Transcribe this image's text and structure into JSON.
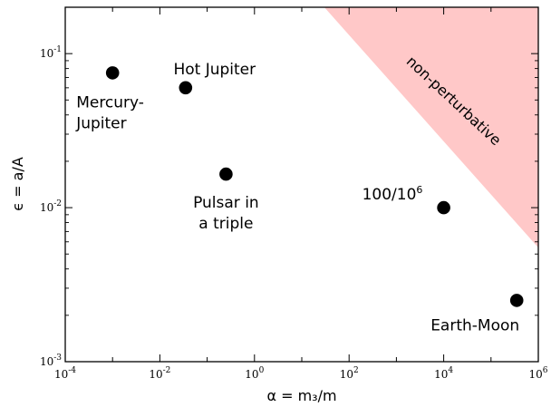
{
  "chart_data": {
    "type": "scatter",
    "xscale": "log",
    "yscale": "log",
    "xlim": [
      0.0001,
      1000000
    ],
    "ylim": [
      0.001,
      0.2
    ],
    "xlabel": "α = m₃/m",
    "ylabel": "ϵ = a/A",
    "x_ticks": [
      {
        "base": "10",
        "exp": "-4",
        "value": 0.0001
      },
      {
        "base": "10",
        "exp": "-2",
        "value": 0.01
      },
      {
        "base": "10",
        "exp": "0",
        "value": 1
      },
      {
        "base": "10",
        "exp": "2",
        "value": 100
      },
      {
        "base": "10",
        "exp": "4",
        "value": 10000
      },
      {
        "base": "10",
        "exp": "6",
        "value": 1000000
      }
    ],
    "y_ticks": [
      {
        "base": "10",
        "exp": "-3",
        "value": 0.001
      },
      {
        "base": "10",
        "exp": "-2",
        "value": 0.01
      },
      {
        "base": "10",
        "exp": "-1",
        "value": 0.1
      }
    ],
    "points": [
      {
        "x": 0.001,
        "y": 0.075,
        "lines": [
          "Mercury-",
          "Jupiter"
        ]
      },
      {
        "x": 0.035,
        "y": 0.06,
        "lines": [
          "Hot Jupiter"
        ]
      },
      {
        "x": 0.25,
        "y": 0.0165,
        "lines": [
          "Pulsar in",
          "a triple"
        ]
      },
      {
        "x": 10000,
        "y": 0.01,
        "lines": [
          "100/10",
          "6"
        ]
      },
      {
        "x": 350000,
        "y": 0.0025,
        "lines": [
          "Earth-Moon"
        ]
      }
    ],
    "region": {
      "label": "non-perturbative",
      "color": "#ffc8c8",
      "vertices": [
        [
          30,
          0.2
        ],
        [
          1000000,
          0.2
        ],
        [
          1000000,
          0.0055
        ]
      ]
    },
    "point_color": "#000000"
  }
}
